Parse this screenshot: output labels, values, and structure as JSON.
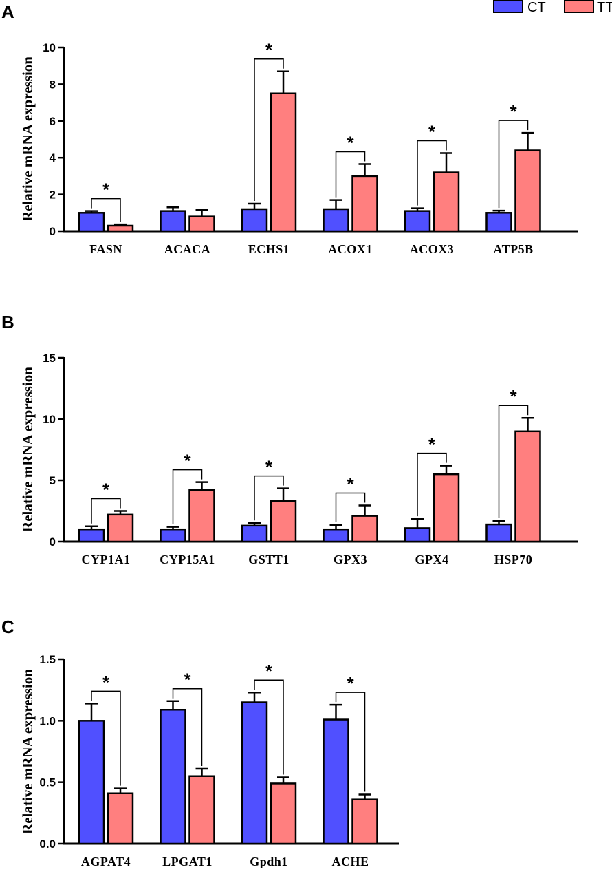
{
  "legend": {
    "items": [
      {
        "name": "CT",
        "color": "#5050ff"
      },
      {
        "name": "TT",
        "color": "#ff7f7f"
      }
    ]
  },
  "chart_data": [
    {
      "panel": "A",
      "type": "bar",
      "ylabel": "Relative mRNA  expression",
      "ylim": [
        0,
        10
      ],
      "yticks": [
        "0",
        "2",
        "4",
        "6",
        "8",
        "10"
      ],
      "ytick_values": [
        0,
        2,
        4,
        6,
        8,
        10
      ],
      "categories": [
        "FASN",
        "ACACA",
        "ECHS1",
        "ACOX1",
        "ACOX3",
        "ATP5B"
      ],
      "series": [
        {
          "name": "CT",
          "values": [
            1.0,
            1.1,
            1.2,
            1.2,
            1.1,
            1.0
          ],
          "errors": [
            0.1,
            0.2,
            0.3,
            0.5,
            0.15,
            0.12
          ]
        },
        {
          "name": "TT",
          "values": [
            0.3,
            0.8,
            7.5,
            3.0,
            3.2,
            4.4
          ],
          "errors": [
            0.07,
            0.35,
            1.2,
            0.65,
            1.05,
            0.95
          ]
        }
      ],
      "significance": [
        "*",
        "",
        "*",
        "*",
        "*",
        "*"
      ]
    },
    {
      "panel": "B",
      "type": "bar",
      "ylabel": "Relative  mRNA expression",
      "ylim": [
        0,
        15
      ],
      "yticks": [
        "0",
        "5",
        "10",
        "15"
      ],
      "ytick_values": [
        0,
        5,
        10,
        15
      ],
      "categories": [
        "CYP1A1",
        "CYP15A1",
        "GSTT1",
        "GPX3",
        "GPX4",
        "HSP70"
      ],
      "series": [
        {
          "name": "CT",
          "values": [
            1.0,
            1.0,
            1.3,
            1.0,
            1.1,
            1.4
          ],
          "errors": [
            0.25,
            0.2,
            0.2,
            0.35,
            0.75,
            0.3
          ]
        },
        {
          "name": "TT",
          "values": [
            2.2,
            4.2,
            3.3,
            2.1,
            5.5,
            9.0
          ],
          "errors": [
            0.3,
            0.65,
            1.05,
            0.85,
            0.7,
            1.1
          ]
        }
      ],
      "significance": [
        "*",
        "*",
        "*",
        "*",
        "*",
        "*"
      ]
    },
    {
      "panel": "C",
      "type": "bar",
      "ylabel": "Relative  mRNA expression",
      "ylim": [
        0,
        1.5
      ],
      "yticks": [
        "0.0",
        "0.5",
        "1.0",
        "1.5"
      ],
      "ytick_values": [
        0,
        0.5,
        1.0,
        1.5
      ],
      "categories": [
        "AGPAT4",
        "LPGAT1",
        "Gpdh1",
        "ACHE"
      ],
      "series": [
        {
          "name": "CT",
          "values": [
            1.0,
            1.09,
            1.15,
            1.01
          ],
          "errors": [
            0.14,
            0.07,
            0.08,
            0.12
          ]
        },
        {
          "name": "TT",
          "values": [
            0.41,
            0.55,
            0.49,
            0.36
          ],
          "errors": [
            0.04,
            0.06,
            0.05,
            0.04
          ]
        }
      ],
      "significance": [
        "*",
        "*",
        "*",
        "*"
      ]
    }
  ]
}
